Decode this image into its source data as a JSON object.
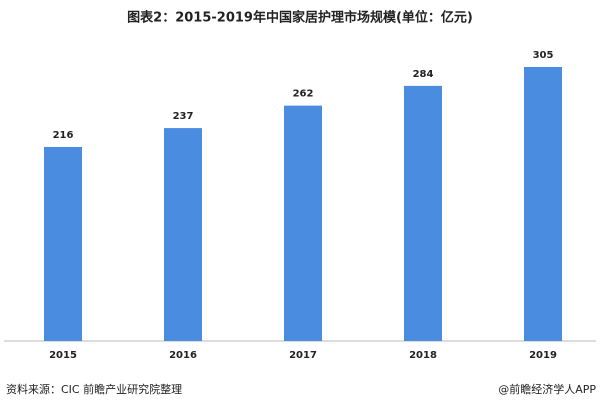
{
  "chart_data": {
    "type": "bar",
    "title": "图表2：2015-2019年中国家居护理市场规模(单位：亿元)",
    "categories": [
      "2015",
      "2016",
      "2017",
      "2018",
      "2019"
    ],
    "values": [
      216,
      237,
      262,
      284,
      305
    ],
    "color": "#4a8de0"
  },
  "footer": {
    "source": "资料来源：CIC 前瞻产业研究院整理",
    "credit": "@前瞻经济学人APP"
  }
}
